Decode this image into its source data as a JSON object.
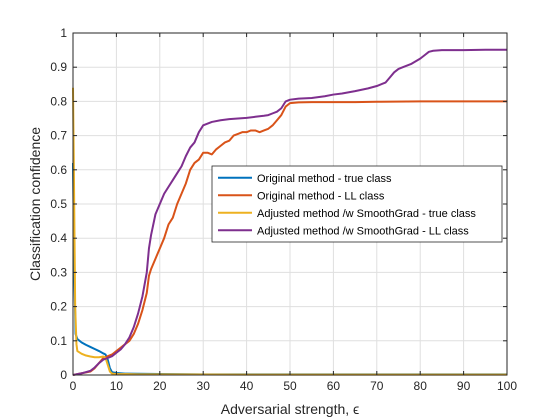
{
  "chart_data": {
    "type": "line",
    "title": "",
    "xlabel": "Adversarial strength, ϵ",
    "ylabel": "Classification confidence",
    "xlim": [
      0,
      100
    ],
    "ylim": [
      0,
      1
    ],
    "xticks": [
      0,
      10,
      20,
      30,
      40,
      50,
      60,
      70,
      80,
      90,
      100
    ],
    "yticks": [
      0,
      0.1,
      0.2,
      0.3,
      0.4,
      0.5,
      0.6,
      0.7,
      0.8,
      0.9,
      1
    ],
    "xtick_labels": [
      "0",
      "10",
      "20",
      "30",
      "40",
      "50",
      "60",
      "70",
      "80",
      "90",
      "100"
    ],
    "ytick_labels": [
      "0",
      "0.1",
      "0.2",
      "0.3",
      "0.4",
      "0.5",
      "0.6",
      "0.7",
      "0.8",
      "0.9",
      "1"
    ],
    "grid": true,
    "legend_position": "center-right",
    "series": [
      {
        "name": "Original method - true class",
        "color": "#0072BD",
        "x": [
          0,
          0.3,
          0.6,
          1,
          2,
          3,
          4,
          5,
          6,
          7,
          7.5,
          8,
          8.5,
          9,
          10,
          12,
          20,
          30,
          50,
          70,
          100
        ],
        "y": [
          0.62,
          0.3,
          0.12,
          0.105,
          0.095,
          0.088,
          0.082,
          0.076,
          0.07,
          0.063,
          0.06,
          0.045,
          0.02,
          0.008,
          0.006,
          0.004,
          0.003,
          0.002,
          0.002,
          0.002,
          0.002
        ]
      },
      {
        "name": "Original method - LL class",
        "color": "#D95319",
        "x": [
          0,
          2,
          4,
          5,
          6,
          7,
          8,
          9,
          10,
          11,
          12,
          13,
          14,
          15,
          16,
          17,
          17.5,
          18,
          19,
          20,
          21,
          22,
          23,
          24,
          25,
          26,
          27,
          28,
          29,
          30,
          31,
          32,
          33,
          34,
          35,
          36,
          37,
          38,
          39,
          40,
          41,
          42,
          43,
          44,
          45,
          46,
          47,
          48,
          49,
          50,
          52,
          55,
          60,
          65,
          70,
          80,
          90,
          100
        ],
        "y": [
          0,
          0.005,
          0.01,
          0.02,
          0.035,
          0.05,
          0.055,
          0.06,
          0.07,
          0.08,
          0.09,
          0.1,
          0.12,
          0.15,
          0.19,
          0.24,
          0.29,
          0.31,
          0.34,
          0.37,
          0.4,
          0.44,
          0.46,
          0.5,
          0.53,
          0.56,
          0.6,
          0.62,
          0.63,
          0.65,
          0.65,
          0.645,
          0.66,
          0.67,
          0.68,
          0.685,
          0.7,
          0.705,
          0.71,
          0.71,
          0.715,
          0.715,
          0.71,
          0.715,
          0.72,
          0.73,
          0.745,
          0.76,
          0.785,
          0.795,
          0.797,
          0.798,
          0.798,
          0.798,
          0.799,
          0.8,
          0.8,
          0.8
        ]
      },
      {
        "name": "Adjusted method /w SmoothGrad - true class",
        "color": "#EDB120",
        "x": [
          0,
          0.2,
          0.5,
          0.8,
          1,
          2,
          3,
          4,
          5,
          6,
          7,
          7.5,
          8,
          8.5,
          9,
          10,
          15,
          20,
          40,
          60,
          100
        ],
        "y": [
          0.84,
          0.6,
          0.2,
          0.09,
          0.07,
          0.062,
          0.057,
          0.054,
          0.052,
          0.052,
          0.054,
          0.05,
          0.03,
          0.01,
          0.004,
          0.003,
          0.002,
          0.002,
          0.001,
          0.001,
          0.001
        ]
      },
      {
        "name": "Adjusted method /w SmoothGrad - LL class",
        "color": "#7E2F8E",
        "x": [
          0,
          2,
          4,
          5,
          6,
          7,
          8,
          9,
          10,
          11,
          12,
          13,
          14,
          15,
          16,
          17,
          17.5,
          18,
          19,
          20,
          21,
          22,
          23,
          24,
          25,
          26,
          27,
          28,
          29,
          30,
          32,
          34,
          36,
          38,
          40,
          42,
          44,
          45,
          46,
          47,
          48,
          49,
          50,
          52,
          55,
          58,
          60,
          62,
          65,
          68,
          70,
          72,
          73,
          74,
          75,
          76,
          78,
          80,
          81,
          82,
          83,
          85,
          90,
          95,
          100
        ],
        "y": [
          0,
          0.005,
          0.012,
          0.022,
          0.035,
          0.045,
          0.05,
          0.055,
          0.065,
          0.075,
          0.09,
          0.11,
          0.14,
          0.18,
          0.23,
          0.3,
          0.37,
          0.41,
          0.47,
          0.5,
          0.53,
          0.55,
          0.57,
          0.59,
          0.61,
          0.64,
          0.665,
          0.68,
          0.71,
          0.73,
          0.74,
          0.745,
          0.748,
          0.75,
          0.752,
          0.755,
          0.758,
          0.76,
          0.765,
          0.77,
          0.78,
          0.8,
          0.805,
          0.808,
          0.81,
          0.815,
          0.82,
          0.823,
          0.83,
          0.838,
          0.845,
          0.855,
          0.87,
          0.885,
          0.895,
          0.9,
          0.91,
          0.925,
          0.935,
          0.945,
          0.948,
          0.95,
          0.95,
          0.951,
          0.951
        ]
      }
    ]
  }
}
